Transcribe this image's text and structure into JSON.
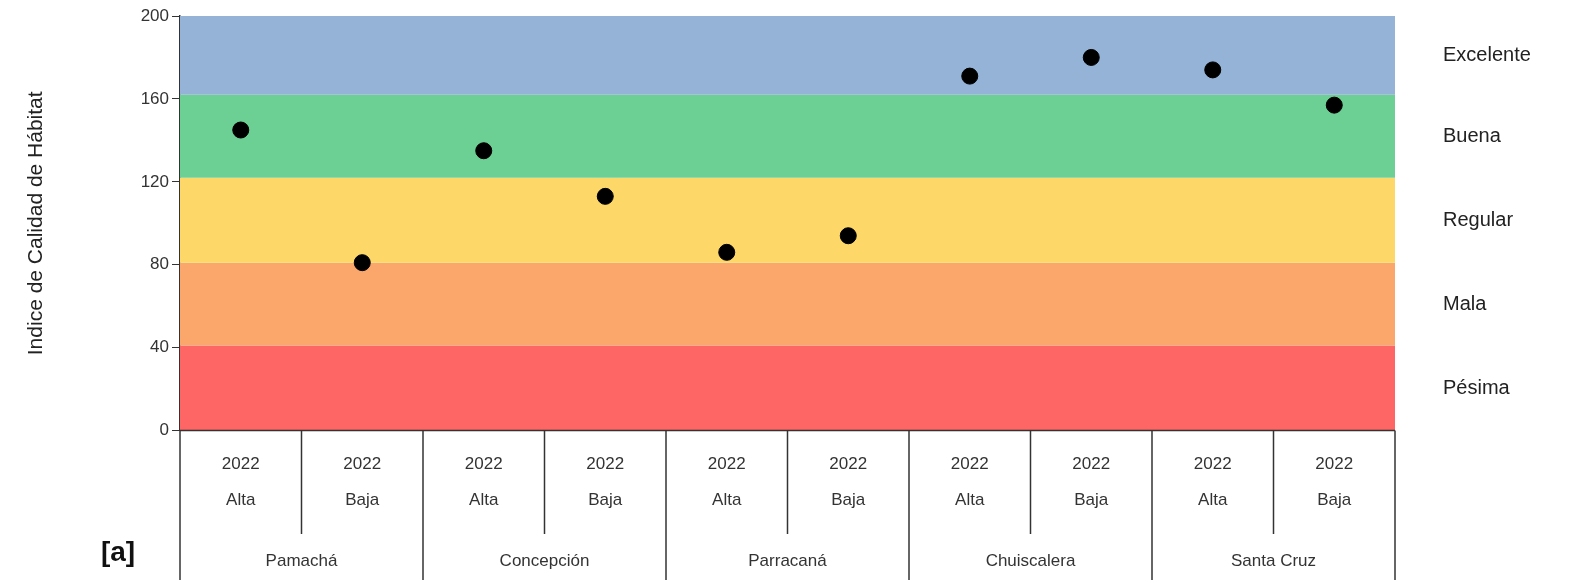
{
  "chart_data": {
    "type": "scatter",
    "ylabel": "Indice de Calidad de Hábitat",
    "categories": [
      "2022\nAlta",
      "2022\nBaja",
      "2022\nAlta",
      "2022\nBaja",
      "2022\nAlta",
      "2022\nBaja",
      "2022\nAlta",
      "2022\nBaja",
      "2022\nAlta",
      "2022\nBaja"
    ],
    "series": [
      {
        "color": "#000000",
        "values": [
          145,
          81,
          135,
          113,
          86,
          94,
          171,
          180,
          174,
          157
        ]
      }
    ],
    "ylim": [
      0,
      200
    ],
    "yticks": [
      0,
      40,
      80,
      120,
      160,
      200
    ],
    "grid": false,
    "legend": false,
    "marker": "circle",
    "bands": [
      {
        "axis": "y",
        "from": 0,
        "to": 41,
        "label": "Pésima",
        "color": "#fe6565"
      },
      {
        "axis": "y",
        "from": 41,
        "to": 81,
        "label": "Mala",
        "color": "#fba66a"
      },
      {
        "axis": "y",
        "from": 81,
        "to": 122,
        "label": "Regular",
        "color": "#fdd868"
      },
      {
        "axis": "y",
        "from": 122,
        "to": 162,
        "label": "Buena",
        "color": "#6ccf94"
      },
      {
        "axis": "y",
        "from": 162,
        "to": 200,
        "label": "Excelente",
        "color": "#95b3d7"
      }
    ],
    "annotations": [
      "Pamachá",
      "Concepción",
      "Parracaná",
      "Chuiscalera",
      "Santa Cruz",
      "[a]"
    ]
  }
}
